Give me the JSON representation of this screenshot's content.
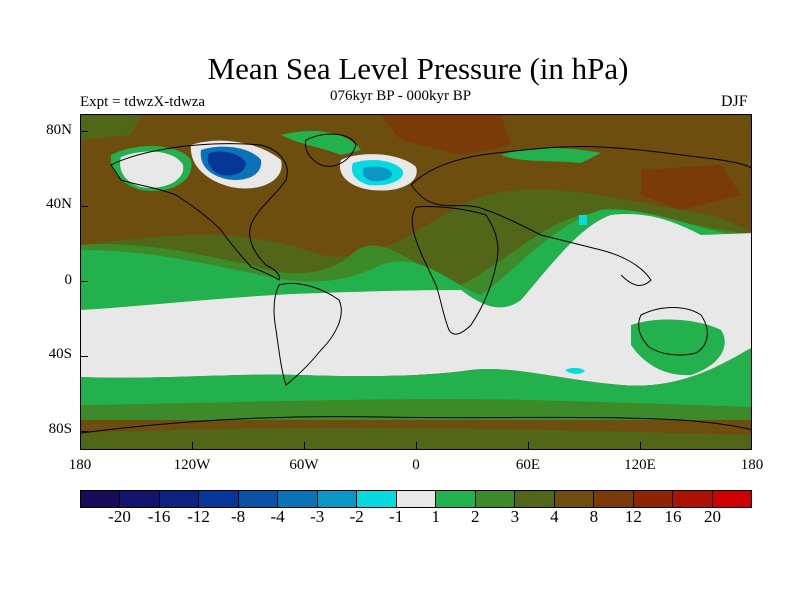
{
  "title": "Mean Sea Level Pressure (in hPa)",
  "subtitle": "076kyr BP - 000kyr BP",
  "experiment": "Expt = tdwzX-tdwza",
  "season": "DJF",
  "lat_labels": [
    "80N",
    "40N",
    "0",
    "40S",
    "80S"
  ],
  "lon_labels": [
    "180",
    "120W",
    "60W",
    "0",
    "60E",
    "120E",
    "180"
  ],
  "colorbar": {
    "colors": [
      "#1a0a5a",
      "#12146e",
      "#0c237f",
      "#063698",
      "#0a51a8",
      "#0a73b8",
      "#0b96c8",
      "#06dade",
      "#e8e8e8",
      "#22b14c",
      "#3d8a2a",
      "#52661a",
      "#6e4e0e",
      "#7a3a0a",
      "#8e2406",
      "#ab1204",
      "#cc0000"
    ],
    "labels": [
      "-20",
      "-16",
      "-12",
      "-8",
      "-4",
      "-3",
      "-2",
      "-1",
      "1",
      "2",
      "3",
      "4",
      "8",
      "12",
      "16",
      "20"
    ]
  },
  "legend_colors": {
    "negative_low": "#0a51a8",
    "negative_mid": "#06dade",
    "near_zero": "#e8e8e8",
    "pos_1": "#22b14c",
    "pos_2": "#3d8a2a",
    "pos_3": "#52661a",
    "pos_4": "#6e4e0e",
    "pos_5": "#7a3a0a"
  }
}
